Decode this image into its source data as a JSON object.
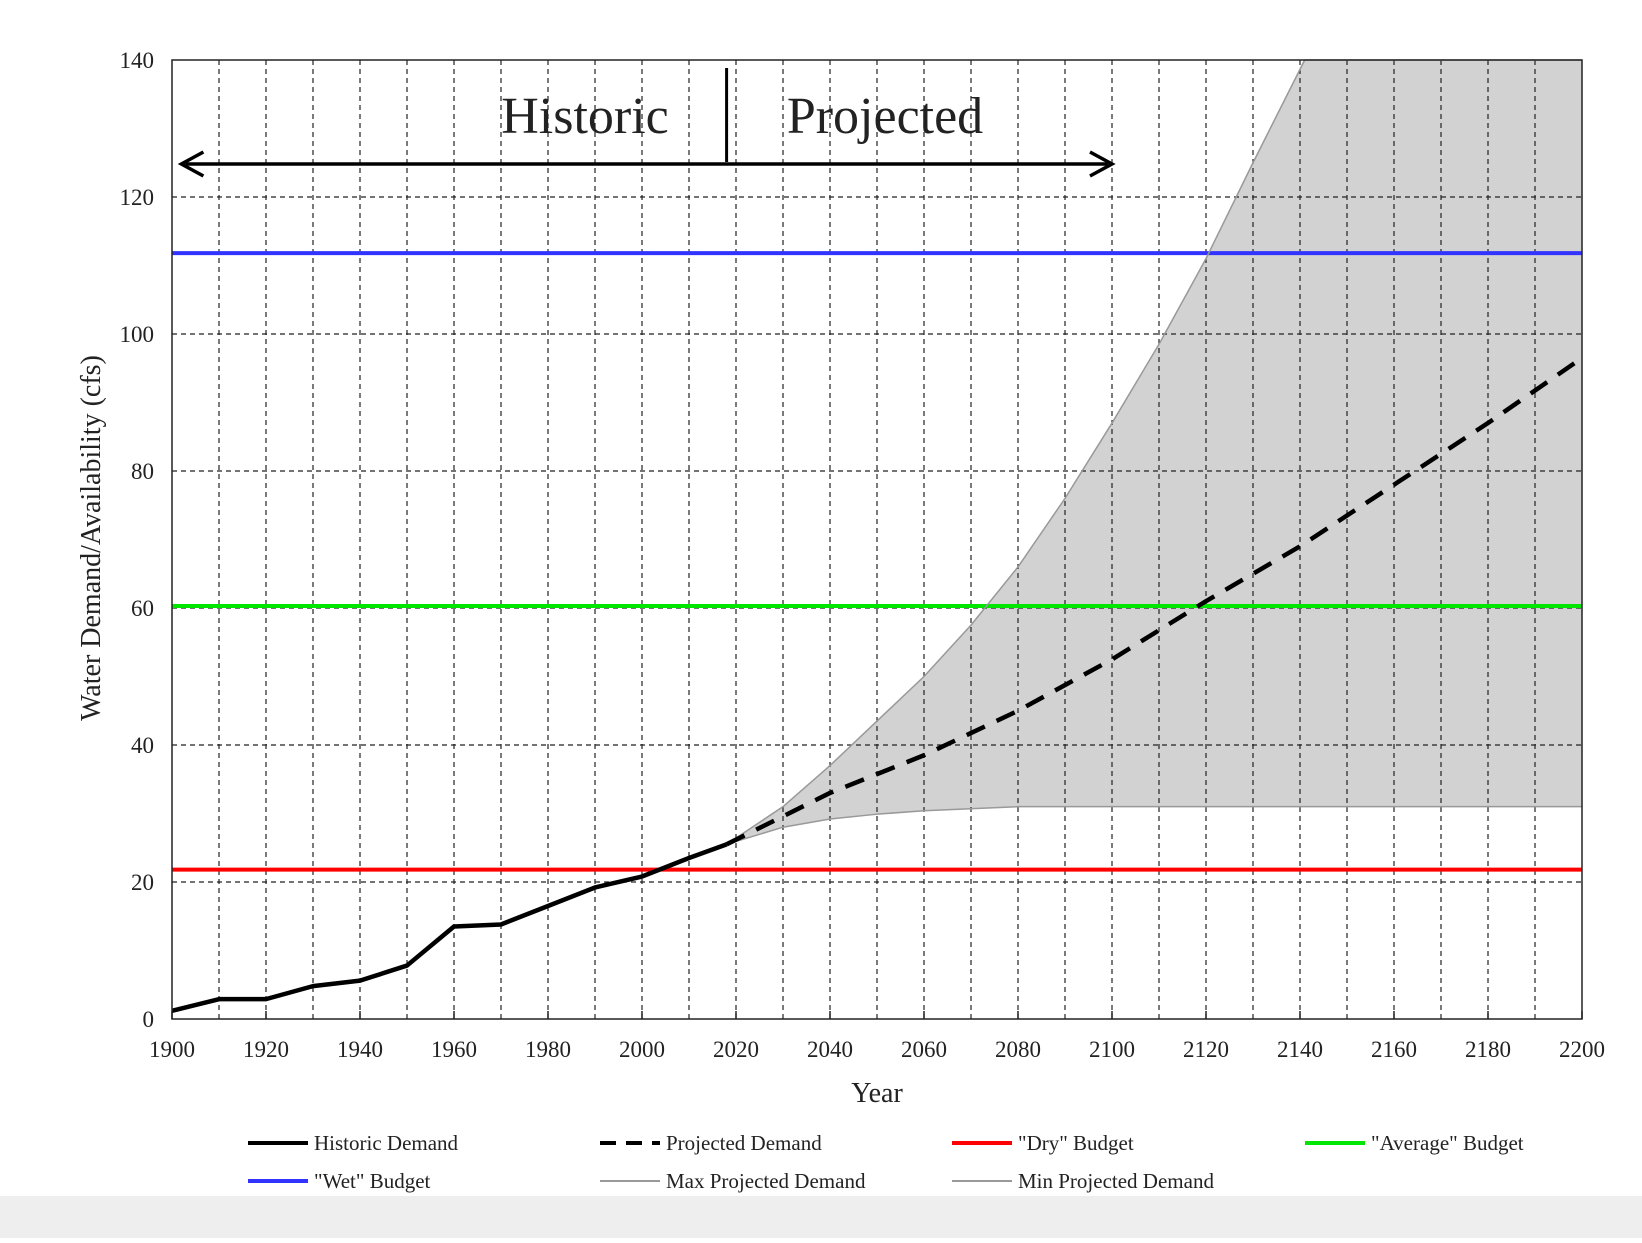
{
  "chart_data": {
    "type": "line",
    "xlabel": "Year",
    "ylabel": "Water Demand/Availability  (cfs)",
    "xlim": [
      1900,
      2200
    ],
    "ylim": [
      0,
      140
    ],
    "x_ticks": [
      1900,
      1920,
      1940,
      1960,
      1980,
      2000,
      2020,
      2040,
      2060,
      2080,
      2100,
      2120,
      2140,
      2160,
      2180,
      2200
    ],
    "y_ticks": [
      0,
      20,
      40,
      60,
      80,
      100,
      120,
      140
    ],
    "grid": true,
    "legend_position": "bottom",
    "annotations": {
      "historic": "Historic",
      "projected": "Projected",
      "divider_year": 2018,
      "arrow_range": [
        1902,
        2100
      ]
    },
    "series": [
      {
        "name": "Historic Demand",
        "color": "#000000",
        "style": "solid",
        "x": [
          1900,
          1910,
          1920,
          1930,
          1940,
          1950,
          1960,
          1970,
          1980,
          1990,
          2000,
          2010,
          2018
        ],
        "y": [
          1.2,
          2.9,
          2.9,
          4.8,
          5.6,
          7.8,
          13.5,
          13.8,
          16.5,
          19.2,
          20.8,
          23.5,
          25.5
        ]
      },
      {
        "name": "Projected Demand",
        "color": "#000000",
        "style": "dashed",
        "x": [
          2018,
          2040,
          2060,
          2080,
          2100,
          2120,
          2140,
          2160,
          2180,
          2200
        ],
        "y": [
          25.5,
          33,
          38.5,
          45,
          52.5,
          61,
          69,
          78,
          87,
          96.5
        ]
      },
      {
        "name": "\"Dry\" Budget",
        "color": "#ff0000",
        "style": "solid",
        "x": [
          1900,
          2200
        ],
        "y": [
          21.8,
          21.8
        ]
      },
      {
        "name": "\"Average\" Budget",
        "color": "#00e600",
        "style": "solid",
        "x": [
          1900,
          2200
        ],
        "y": [
          60.3,
          60.3
        ]
      },
      {
        "name": "\"Wet\" Budget",
        "color": "#3333ff",
        "style": "solid",
        "x": [
          1900,
          2200
        ],
        "y": [
          111.8,
          111.8
        ]
      },
      {
        "name": "Max Projected Demand",
        "color": "#999999",
        "style": "solid",
        "x": [
          2018,
          2030,
          2040,
          2050,
          2060,
          2070,
          2080,
          2090,
          2100,
          2110,
          2120,
          2130,
          2141,
          2200
        ],
        "y": [
          25.5,
          31,
          37,
          43.5,
          50,
          57.5,
          66,
          76,
          87,
          98.5,
          111,
          125,
          140,
          140
        ]
      },
      {
        "name": "Min Projected Demand",
        "color": "#999999",
        "style": "solid",
        "x": [
          2018,
          2030,
          2040,
          2050,
          2060,
          2080,
          2100,
          2200
        ],
        "y": [
          25.5,
          28,
          29.2,
          29.9,
          30.4,
          31,
          31,
          31
        ]
      }
    ],
    "legend": {
      "row1": [
        "Historic Demand",
        "Projected Demand",
        "\"Dry\" Budget",
        "\"Average\" Budget"
      ],
      "row2": [
        "\"Wet\" Budget",
        "Max Projected Demand",
        "Min Projected Demand"
      ]
    },
    "colors": {
      "band_fill": "#d2d2d2",
      "grid": "#222222"
    }
  }
}
